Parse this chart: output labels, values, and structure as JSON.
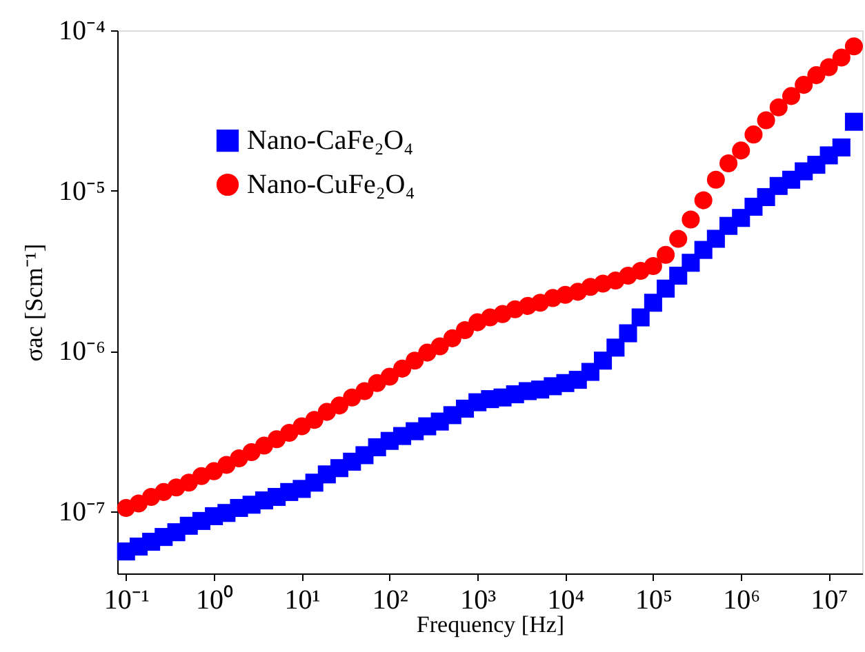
{
  "chart_data": {
    "type": "scatter",
    "xlabel": "Frequency [Hz]",
    "ylabel": "σac [Scm⁻¹]",
    "log": "xy",
    "grid": false,
    "legend": "top left",
    "xlim": [
      0.0794,
      24000000
    ],
    "ylim": [
      4.1e-08,
      0.0001
    ],
    "xticks": [
      {
        "value": 0.1,
        "label": "10⁻¹"
      },
      {
        "value": 1,
        "label": "10⁰"
      },
      {
        "value": 10,
        "label": "10¹"
      },
      {
        "value": 100,
        "label": "10²"
      },
      {
        "value": 1000,
        "label": "10³"
      },
      {
        "value": 10000,
        "label": "10⁴"
      },
      {
        "value": 100000,
        "label": "10⁵"
      },
      {
        "value": 1000000,
        "label": "10⁶"
      },
      {
        "value": 10000000,
        "label": "10⁷"
      }
    ],
    "yticks": [
      {
        "value": 1e-07,
        "label": "10⁻⁷"
      },
      {
        "value": 1e-06,
        "label": "10⁻⁶"
      },
      {
        "value": 1e-05,
        "label": "10⁻⁵"
      },
      {
        "value": 0.0001,
        "label": "10⁻⁴"
      }
    ],
    "x": [
      0.1,
      0.139,
      0.193,
      0.268,
      0.373,
      0.518,
      0.72,
      1,
      1.39,
      1.93,
      2.68,
      3.73,
      5.18,
      7.2,
      10,
      13.9,
      19.3,
      26.8,
      37.3,
      51.8,
      72,
      100,
      139,
      193,
      268,
      373,
      518,
      720,
      1000,
      1390,
      1930,
      2680,
      3730,
      5180,
      7200,
      10000,
      13900,
      19300,
      26800,
      37300,
      51800,
      72000,
      100000,
      139000,
      193000,
      268000,
      373000,
      518000,
      720000,
      1000000,
      1390000,
      1930000,
      2680000,
      3730000,
      5180000,
      7200000,
      10000000,
      13900000,
      19300000
    ],
    "series": [
      {
        "name": "Nano-CaFe₂O₄",
        "color": "#0000ff",
        "marker": "square",
        "values": [
          5.62e-08,
          6.03e-08,
          6.46e-08,
          6.92e-08,
          7.41e-08,
          8.13e-08,
          8.71e-08,
          9.33e-08,
          9.77e-08,
          1.05e-07,
          1.1e-07,
          1.17e-07,
          1.23e-07,
          1.32e-07,
          1.38e-07,
          1.51e-07,
          1.7e-07,
          1.86e-07,
          2.04e-07,
          2.24e-07,
          2.51e-07,
          2.75e-07,
          2.95e-07,
          3.16e-07,
          3.39e-07,
          3.63e-07,
          3.98e-07,
          4.37e-07,
          4.79e-07,
          5.01e-07,
          5.13e-07,
          5.37e-07,
          5.62e-07,
          5.75e-07,
          6.03e-07,
          6.31e-07,
          6.61e-07,
          7.41e-07,
          8.71e-07,
          1.05e-06,
          1.29e-06,
          1.62e-06,
          2e-06,
          2.45e-06,
          2.95e-06,
          3.55e-06,
          4.27e-06,
          5.01e-06,
          6.03e-06,
          6.76e-06,
          7.94e-06,
          9.12e-06,
          1.07e-05,
          1.17e-05,
          1.32e-05,
          1.45e-05,
          1.66e-05,
          1.86e-05,
          2.69e-05
        ]
      },
      {
        "name": "Nano-CuFe₂O₄",
        "color": "#ff0000",
        "marker": "circle",
        "values": [
          1.05e-07,
          1.12e-07,
          1.23e-07,
          1.32e-07,
          1.41e-07,
          1.51e-07,
          1.66e-07,
          1.78e-07,
          1.95e-07,
          2.14e-07,
          2.34e-07,
          2.57e-07,
          2.82e-07,
          3.09e-07,
          3.39e-07,
          3.72e-07,
          4.17e-07,
          4.57e-07,
          5.13e-07,
          5.62e-07,
          6.31e-07,
          6.92e-07,
          7.76e-07,
          8.71e-07,
          9.77e-07,
          1.07e-06,
          1.2e-06,
          1.35e-06,
          1.51e-06,
          1.62e-06,
          1.7e-06,
          1.82e-06,
          1.91e-06,
          2e-06,
          2.14e-06,
          2.24e-06,
          2.34e-06,
          2.51e-06,
          2.63e-06,
          2.75e-06,
          2.95e-06,
          3.16e-06,
          3.39e-06,
          3.98e-06,
          5.01e-06,
          6.61e-06,
          8.71e-06,
          1.17e-05,
          1.48e-05,
          1.78e-05,
          2.24e-05,
          2.75e-05,
          3.31e-05,
          3.89e-05,
          4.57e-05,
          5.25e-05,
          5.89e-05,
          6.76e-05,
          7.94e-05
        ]
      }
    ]
  }
}
